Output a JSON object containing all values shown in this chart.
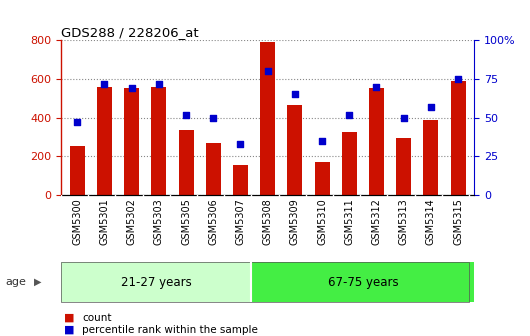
{
  "title": "GDS288 / 228206_at",
  "categories": [
    "GSM5300",
    "GSM5301",
    "GSM5302",
    "GSM5303",
    "GSM5305",
    "GSM5306",
    "GSM5307",
    "GSM5308",
    "GSM5309",
    "GSM5310",
    "GSM5311",
    "GSM5312",
    "GSM5313",
    "GSM5314",
    "GSM5315"
  ],
  "counts": [
    255,
    560,
    555,
    560,
    335,
    270,
    155,
    790,
    465,
    170,
    325,
    555,
    295,
    385,
    590
  ],
  "percentiles": [
    47,
    72,
    69,
    72,
    52,
    50,
    33,
    80,
    65,
    35,
    52,
    70,
    50,
    57,
    75
  ],
  "group1_label": "21-27 years",
  "group2_label": "67-75 years",
  "group1_count": 7,
  "group2_count": 8,
  "ylim_left": [
    0,
    800
  ],
  "ylim_right": [
    0,
    100
  ],
  "yticks_left": [
    0,
    200,
    400,
    600,
    800
  ],
  "yticks_right": [
    0,
    25,
    50,
    75,
    100
  ],
  "bar_color": "#cc1100",
  "dot_color": "#0000cc",
  "group1_color": "#ccffcc",
  "group2_color": "#44ee44",
  "tick_bg_color": "#d4d4d4",
  "age_label_color": "#555555",
  "legend_count_color": "#cc1100",
  "legend_pct_color": "#0000cc",
  "title_color": "#000000",
  "left_axis_color": "#cc1100",
  "right_axis_color": "#0000cc",
  "background_color": "#ffffff",
  "plot_bg_color": "#ffffff",
  "border_color": "#000000"
}
